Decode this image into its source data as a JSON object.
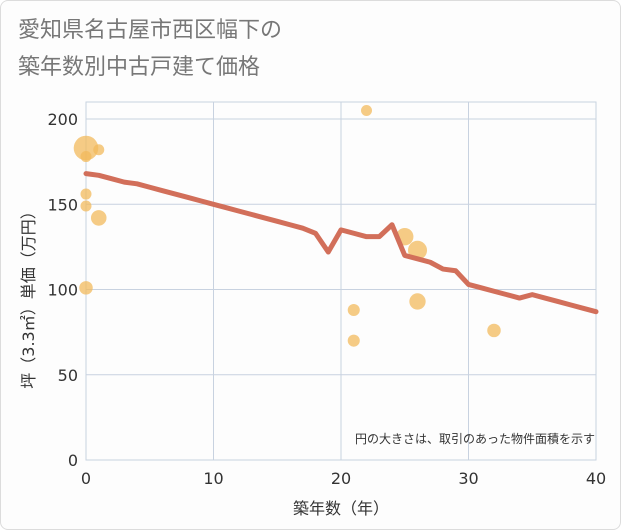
{
  "chart_data": {
    "type": "scatter",
    "title_lines": [
      "愛知県名古屋市西区幅下の",
      "築年数別中古戸建て価格"
    ],
    "xlabel": "築年数（年）",
    "ylabel": "坪（3.3㎡）単価（万円）",
    "xlim": [
      0,
      40
    ],
    "ylim": [
      0,
      210
    ],
    "xticks": [
      0,
      10,
      20,
      30,
      40
    ],
    "yticks": [
      0,
      50,
      100,
      150,
      200
    ],
    "grid": true,
    "note": "円の大きさは、取引のあった物件面積を示す",
    "colors": {
      "bubble": "#f2b95c",
      "trend": "#d26f5a",
      "grid": "#c8d2e0"
    },
    "scatter": [
      {
        "x": 0,
        "y": 183,
        "size": 5
      },
      {
        "x": 0,
        "y": 178,
        "size": 1
      },
      {
        "x": 0,
        "y": 156,
        "size": 1
      },
      {
        "x": 0,
        "y": 149,
        "size": 1
      },
      {
        "x": 0,
        "y": 101,
        "size": 1.5
      },
      {
        "x": 1,
        "y": 182,
        "size": 1
      },
      {
        "x": 1,
        "y": 142,
        "size": 2
      },
      {
        "x": 21,
        "y": 88,
        "size": 1.2
      },
      {
        "x": 21,
        "y": 70,
        "size": 1.2
      },
      {
        "x": 22,
        "y": 205,
        "size": 1
      },
      {
        "x": 25,
        "y": 131,
        "size": 2.5
      },
      {
        "x": 26,
        "y": 123,
        "size": 3
      },
      {
        "x": 26,
        "y": 93,
        "size": 2.2
      },
      {
        "x": 32,
        "y": 76,
        "size": 1.5
      }
    ],
    "trend_line": {
      "x": [
        0,
        1,
        2,
        3,
        4,
        5,
        6,
        7,
        8,
        9,
        10,
        11,
        12,
        13,
        14,
        15,
        16,
        17,
        18,
        19,
        20,
        21,
        22,
        23,
        24,
        25,
        26,
        27,
        28,
        29,
        30,
        31,
        32,
        33,
        34,
        35,
        36,
        37,
        38,
        39,
        40
      ],
      "y": [
        168,
        167,
        165,
        163,
        162,
        160,
        158,
        156,
        154,
        152,
        150,
        148,
        146,
        144,
        142,
        140,
        138,
        136,
        133,
        122,
        135,
        133,
        131,
        131,
        138,
        120,
        118,
        116,
        112,
        111,
        103,
        101,
        99,
        97,
        95,
        97,
        95,
        93,
        91,
        89,
        87
      ]
    }
  }
}
